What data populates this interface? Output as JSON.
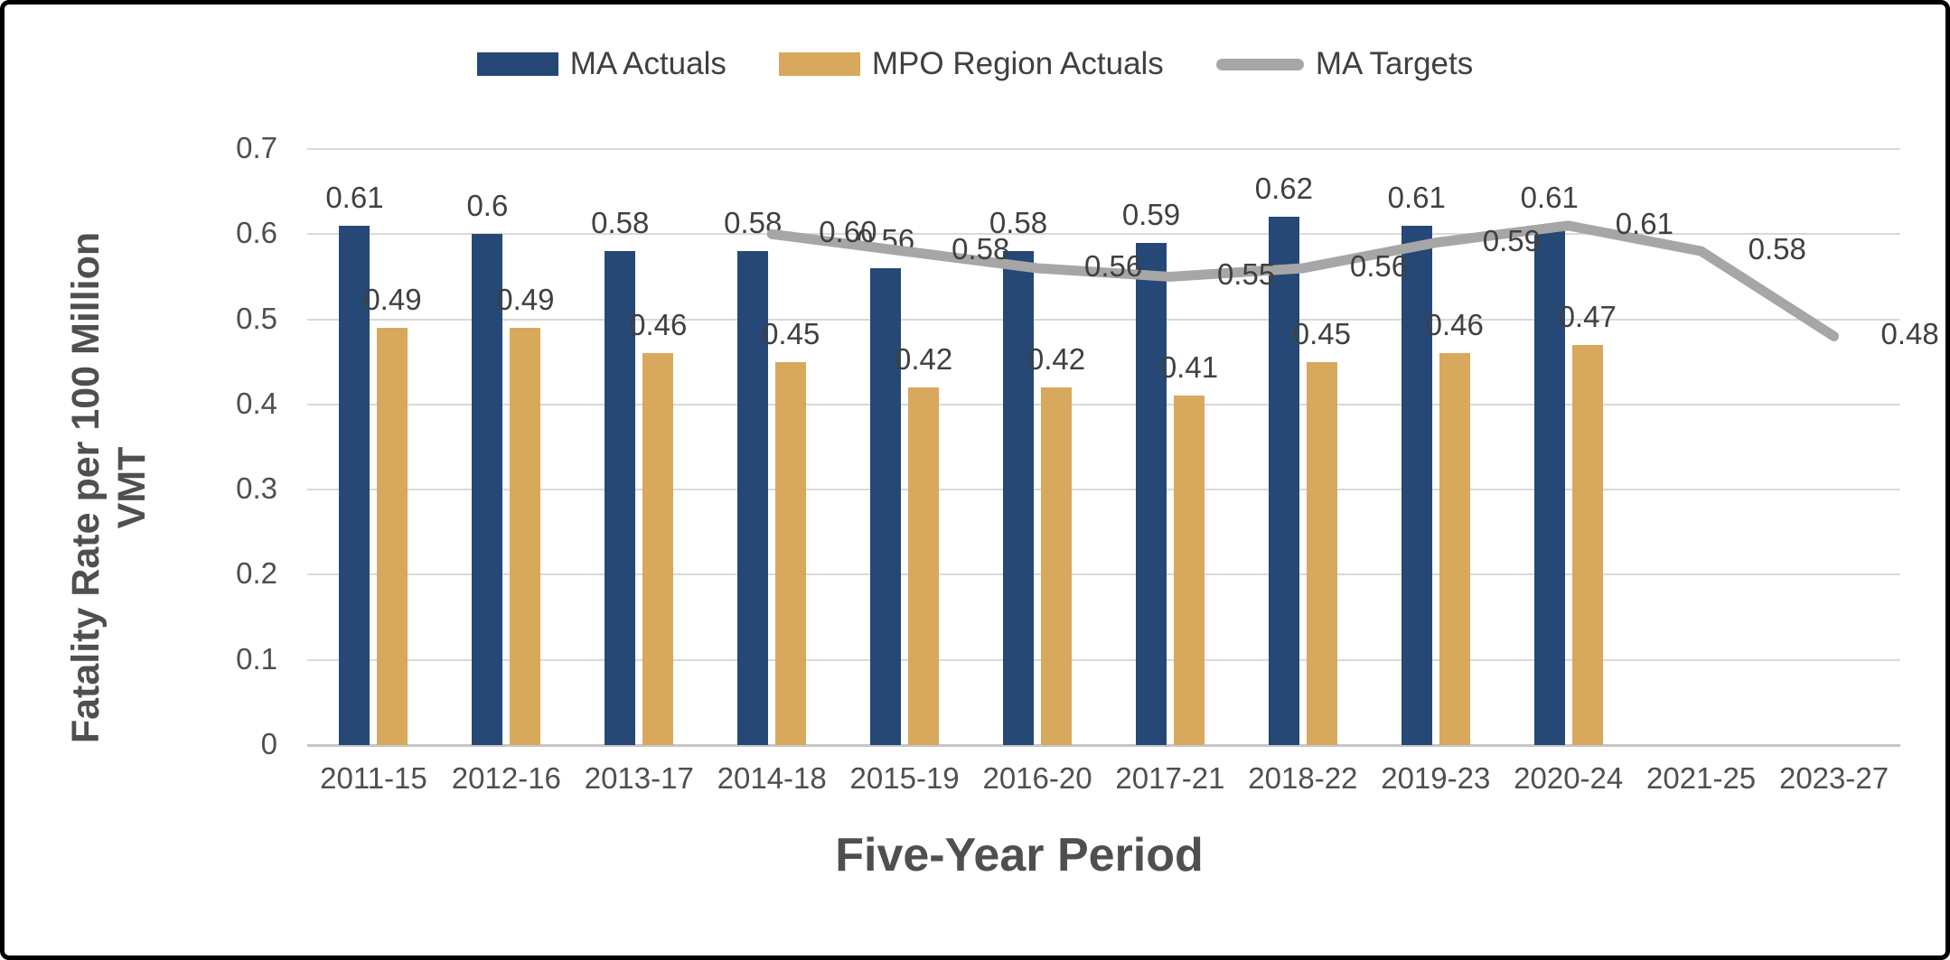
{
  "chart_data": {
    "type": "bar",
    "subtype": "grouped-bars-with-line-overlay",
    "title": "",
    "xlabel": "Five-Year Period",
    "ylabel": "Fatality Rate per 100 Million VMT",
    "ylabel_lines": [
      "Fatality Rate per 100 Million",
      "VMT"
    ],
    "ylim": [
      0,
      0.7
    ],
    "yticks": [
      "0.7",
      "0.6",
      "0.5",
      "0.4",
      "0.3",
      "0.2",
      "0.1",
      "0"
    ],
    "grid": true,
    "legend_position": "top",
    "categories": [
      "2011-15",
      "2012-16",
      "2013-17",
      "2014-18",
      "2015-19",
      "2016-20",
      "2017-21",
      "2018-22",
      "2019-23",
      "2020-24",
      "2021-25",
      "2023-27"
    ],
    "series": [
      {
        "name": "MA Actuals",
        "type": "bar",
        "color": "#254876",
        "values": [
          0.61,
          0.6,
          0.58,
          0.58,
          0.56,
          0.58,
          0.59,
          0.62,
          0.61,
          0.61,
          null,
          null
        ],
        "labels": [
          "0.61",
          "0.6",
          "0.58",
          "0.58",
          "0.56",
          "0.58",
          "0.59",
          "0.62",
          "0.61",
          "0.61",
          "",
          ""
        ]
      },
      {
        "name": "MPO Region Actuals",
        "type": "bar",
        "color": "#D8A85C",
        "values": [
          0.49,
          0.49,
          0.46,
          0.45,
          0.42,
          0.42,
          0.41,
          0.45,
          0.46,
          0.47,
          null,
          null
        ],
        "labels": [
          "0.49",
          "0.49",
          "0.46",
          "0.45",
          "0.42",
          "0.42",
          "0.41",
          "0.45",
          "0.46",
          "0.47",
          "",
          ""
        ]
      },
      {
        "name": "MA Targets",
        "type": "line",
        "color": "#A6A6A6",
        "values": [
          null,
          null,
          null,
          0.6,
          0.58,
          0.56,
          0.55,
          0.56,
          0.59,
          0.61,
          0.58,
          0.48
        ],
        "labels": [
          "",
          "",
          "",
          "0.60",
          "0.58",
          "0.56",
          "0.55",
          "0.56",
          "0.59",
          "0.61",
          "0.58",
          "0.48"
        ]
      }
    ],
    "colors": {
      "grid": "#D9D9D9",
      "axis_line": "#C6C6C6",
      "tick_text": "#4F4F4F",
      "data_label_text": "#404040"
    }
  }
}
